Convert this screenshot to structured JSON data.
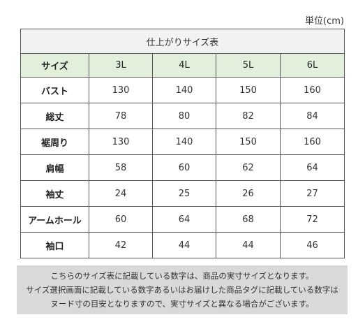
{
  "unit_label": "単位(cm)",
  "table": {
    "title": "仕上がりサイズ表",
    "header_label": "サイズ",
    "sizes": [
      "3L",
      "4L",
      "5L",
      "6L"
    ],
    "rows": [
      {
        "label": "バスト",
        "values": [
          "130",
          "140",
          "150",
          "160"
        ]
      },
      {
        "label": "総丈",
        "values": [
          "78",
          "80",
          "82",
          "84"
        ]
      },
      {
        "label": "裾周り",
        "values": [
          "130",
          "140",
          "150",
          "160"
        ]
      },
      {
        "label": "肩幅",
        "values": [
          "58",
          "60",
          "62",
          "64"
        ]
      },
      {
        "label": "袖丈",
        "values": [
          "24",
          "25",
          "26",
          "27"
        ]
      },
      {
        "label": "アームホール",
        "values": [
          "60",
          "64",
          "68",
          "72"
        ]
      },
      {
        "label": "袖口",
        "values": [
          "42",
          "44",
          "44",
          "46"
        ]
      }
    ]
  },
  "note": {
    "lines": [
      "こちらのサイズ表に記載している数字は、商品の実寸サイズとなります。",
      "サイズ選択画面に記載している数字あるいはお届けした商品タグに記載している数字は",
      "ヌード寸の目安となりますので、実寸サイズと異なる場合がございます。"
    ]
  }
}
